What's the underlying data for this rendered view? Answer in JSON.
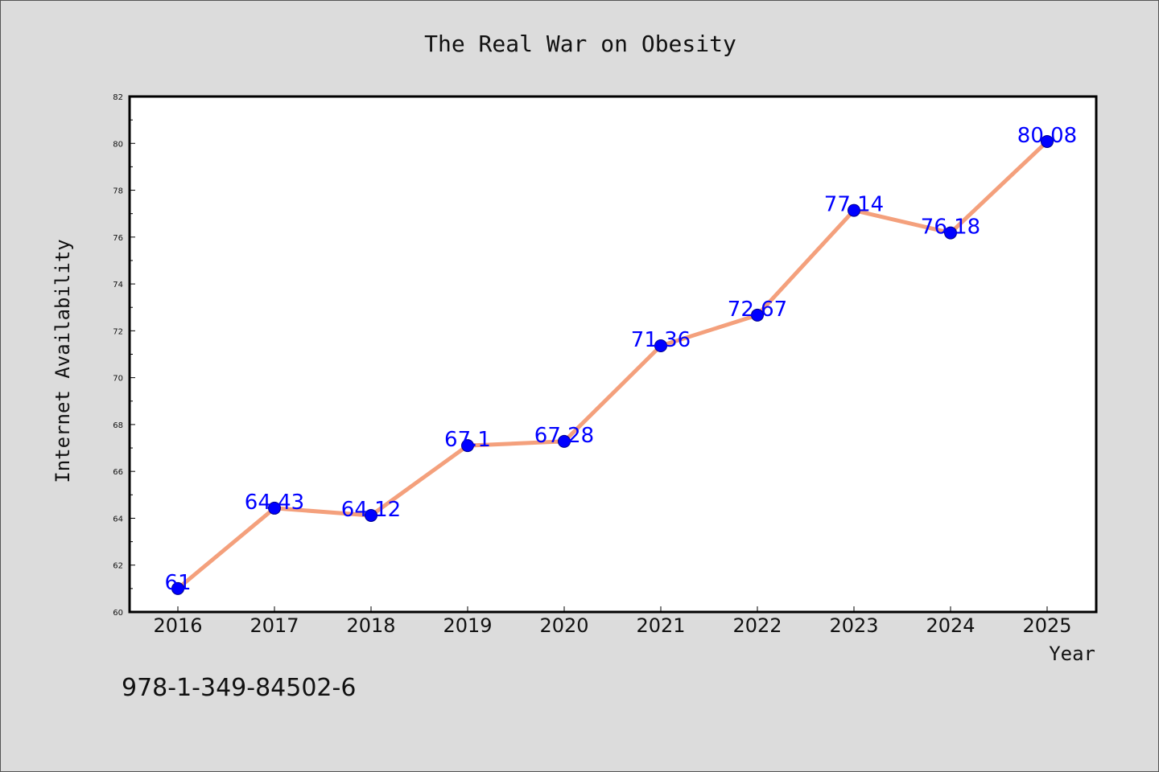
{
  "footer_code": "978-1-349-84502-6",
  "colors": {
    "background": "#dcdcdc",
    "plot_background": "#ffffff",
    "line": "#f4a07c",
    "marker": "#0000ff",
    "label": "#0000ff"
  },
  "chart_data": {
    "type": "line",
    "title": "The Real War on Obesity",
    "xlabel": "Year",
    "ylabel": "Internet Availability",
    "categories": [
      "2016",
      "2017",
      "2018",
      "2019",
      "2020",
      "2021",
      "2022",
      "2023",
      "2024",
      "2025"
    ],
    "values": [
      61,
      64.43,
      64.12,
      67.1,
      67.28,
      71.36,
      72.67,
      77.14,
      76.18,
      80.08
    ],
    "data_labels": [
      "61",
      "64.43",
      "64.12",
      "67.1",
      "67.28",
      "71.36",
      "72.67",
      "77.14",
      "76.18",
      "80.08"
    ],
    "ylim": [
      60,
      82
    ],
    "yticks": [
      "60",
      "62",
      "64",
      "66",
      "68",
      "70",
      "72",
      "74",
      "76",
      "78",
      "80",
      "82"
    ],
    "grid": false,
    "legend": "none"
  }
}
